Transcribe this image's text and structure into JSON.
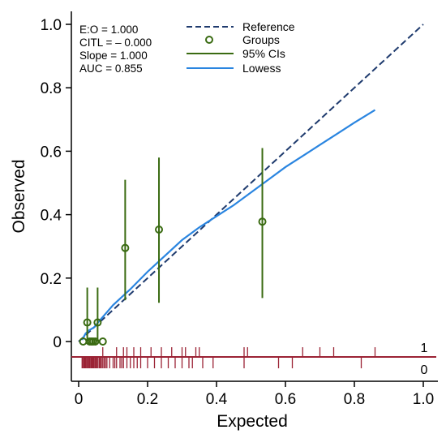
{
  "colors": {
    "reference": "#1f3b6e",
    "groups": "#3a6b12",
    "ci": "#3a6b12",
    "lowess": "#2a85e0",
    "rug": "#9b2335",
    "axis": "#000000"
  },
  "chart_data": {
    "type": "line",
    "title": "",
    "xlabel": "Expected",
    "ylabel": "Observed",
    "xlim": [
      0,
      1.0
    ],
    "ylim": [
      -0.1,
      1.0
    ],
    "x_ticks": [
      0,
      0.2,
      0.4,
      0.6,
      0.8,
      1.0
    ],
    "x_tick_labels": [
      "0",
      "0.2",
      "0.4",
      "0.6",
      "0.8",
      "1.0"
    ],
    "y_ticks": [
      0,
      0.2,
      0.4,
      0.6,
      0.8,
      1.0
    ],
    "y_tick_labels": [
      "0",
      "0.2",
      "0.4",
      "0.6",
      "0.8",
      "1.0"
    ],
    "grid": false,
    "legend_position": "top",
    "stats": [
      "E:O = 1.000",
      "CITL = – 0.000",
      "Slope = 1.000",
      "AUC = 0.855"
    ],
    "legend": [
      {
        "label": "Reference",
        "style": "dashed-line",
        "color": "#1f3b6e"
      },
      {
        "label": "Groups",
        "style": "hollow-circle",
        "color": "#3a6b12"
      },
      {
        "label": "95% CIs",
        "style": "line",
        "color": "#3a6b12"
      },
      {
        "label": "Lowess",
        "style": "line",
        "color": "#2a85e0"
      }
    ],
    "reference": {
      "x": [
        0,
        1.0
      ],
      "y": [
        0,
        1.0
      ]
    },
    "groups": {
      "x": [
        0.013,
        0.025,
        0.032,
        0.037,
        0.042,
        0.048,
        0.055,
        0.07,
        0.135,
        0.233,
        0.533
      ],
      "y": [
        0.0,
        0.06,
        0.0,
        0.0,
        0.0,
        0.0,
        0.06,
        0.0,
        0.295,
        0.353,
        0.378
      ],
      "ci_low": [
        null,
        0.0,
        null,
        null,
        null,
        null,
        0.0,
        null,
        0.13,
        0.122,
        0.137
      ],
      "ci_high": [
        null,
        0.17,
        null,
        null,
        null,
        null,
        0.17,
        null,
        0.51,
        0.58,
        0.61
      ]
    },
    "lowess": {
      "x": [
        0.01,
        0.02,
        0.03,
        0.045,
        0.06,
        0.08,
        0.1,
        0.15,
        0.2,
        0.25,
        0.3,
        0.35,
        0.4,
        0.45,
        0.5,
        0.55,
        0.6,
        0.65,
        0.7,
        0.75,
        0.8,
        0.86
      ],
      "y": [
        0.005,
        0.025,
        0.035,
        0.045,
        0.065,
        0.09,
        0.115,
        0.165,
        0.22,
        0.27,
        0.32,
        0.36,
        0.395,
        0.43,
        0.47,
        0.51,
        0.55,
        0.585,
        0.62,
        0.655,
        0.69,
        0.73
      ]
    },
    "rug_labels": [
      "1",
      "0"
    ],
    "rug_events": [
      0.07,
      0.11,
      0.13,
      0.14,
      0.16,
      0.18,
      0.21,
      0.24,
      0.27,
      0.3,
      0.31,
      0.34,
      0.35,
      0.48,
      0.49,
      0.65,
      0.7,
      0.74,
      0.86
    ],
    "rug_nonevents": [
      0.01,
      0.012,
      0.015,
      0.018,
      0.02,
      0.023,
      0.025,
      0.028,
      0.03,
      0.032,
      0.035,
      0.038,
      0.04,
      0.042,
      0.045,
      0.048,
      0.05,
      0.053,
      0.056,
      0.06,
      0.063,
      0.066,
      0.07,
      0.074,
      0.078,
      0.082,
      0.09,
      0.1,
      0.105,
      0.11,
      0.12,
      0.125,
      0.13,
      0.14,
      0.15,
      0.16,
      0.17,
      0.18,
      0.2,
      0.22,
      0.24,
      0.26,
      0.28,
      0.3,
      0.32,
      0.33,
      0.36,
      0.39,
      0.48,
      0.58,
      0.62,
      0.82
    ]
  }
}
